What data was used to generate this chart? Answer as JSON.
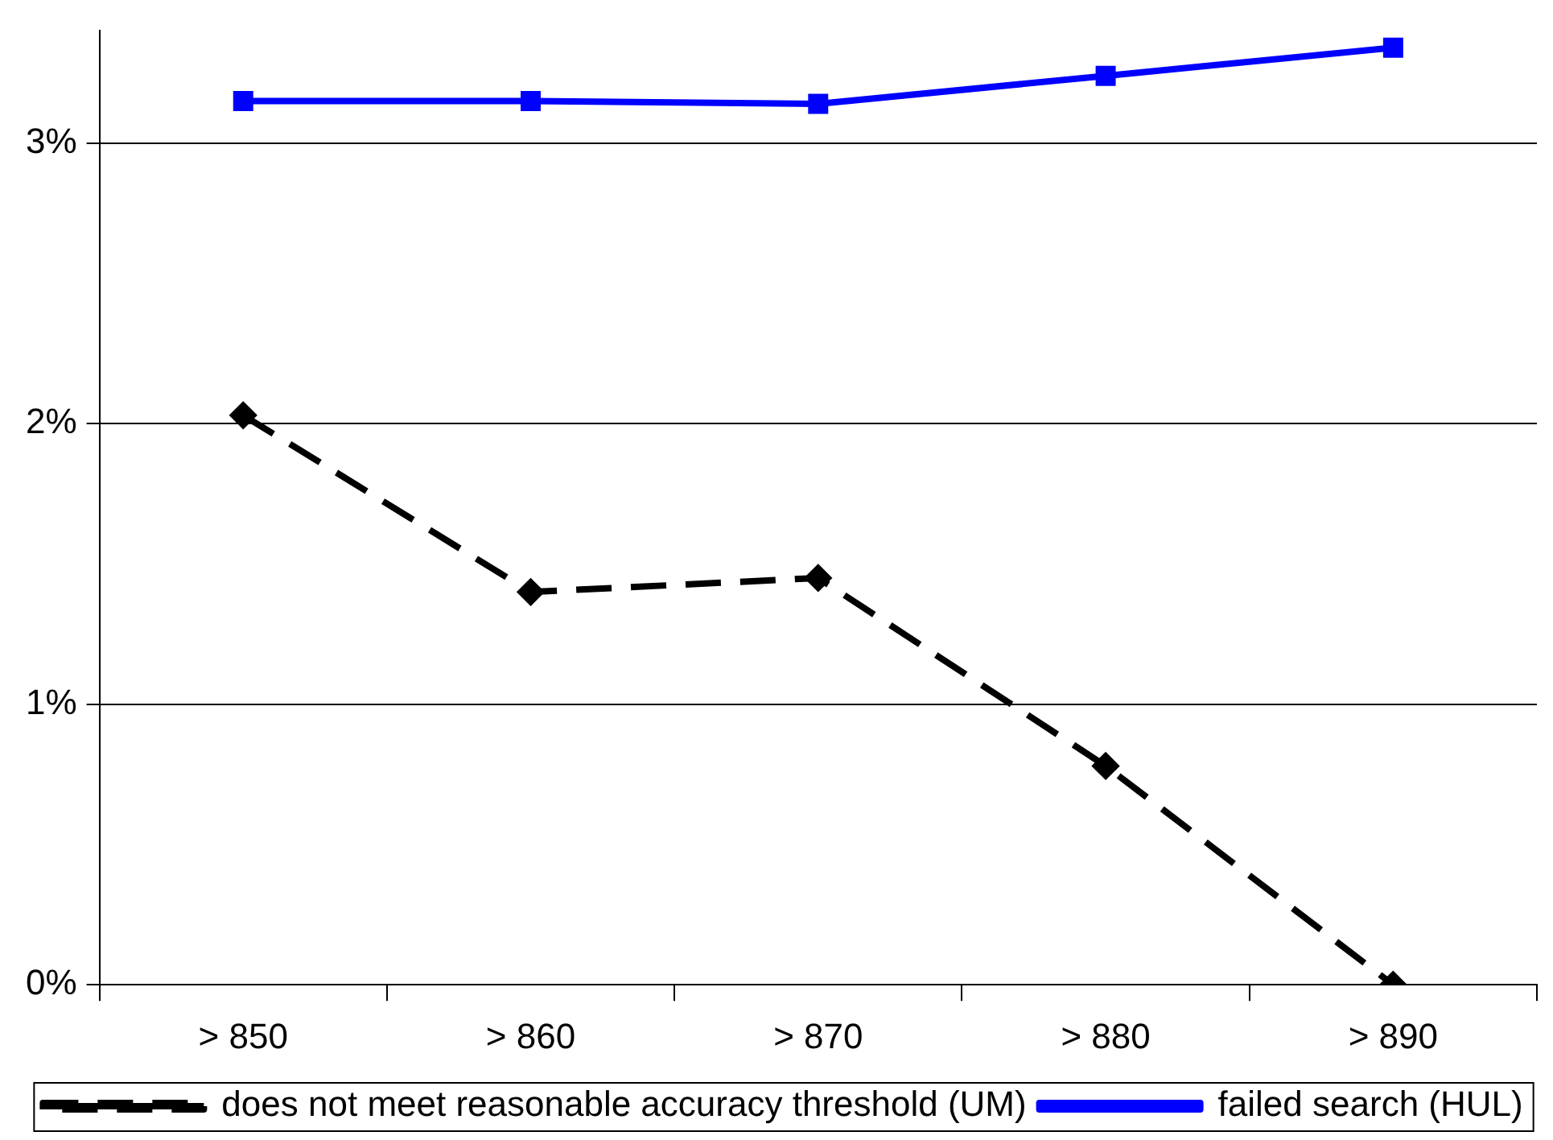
{
  "chart_data": {
    "type": "line",
    "categories": [
      "> 850",
      "> 860",
      "> 870",
      "> 880",
      "> 890"
    ],
    "series": [
      {
        "name": "does not meet reasonable accuracy threshold (UM)",
        "color": "#000000",
        "values": [
          2.03,
          1.4,
          1.45,
          0.78,
          0.0
        ],
        "marker": "diamond",
        "line_style": "dashed"
      },
      {
        "name": "failed search (HUL)",
        "color": "#0000ff",
        "values": [
          3.15,
          3.15,
          3.14,
          3.24,
          3.34
        ],
        "marker": "square",
        "line_style": "solid"
      }
    ],
    "ylim": [
      0,
      3.4
    ],
    "yticks": [
      {
        "value": 0,
        "label": "0%"
      },
      {
        "value": 1,
        "label": "1%"
      },
      {
        "value": 2,
        "label": "2%"
      },
      {
        "value": 3,
        "label": "3%"
      }
    ],
    "grid": "y",
    "legend": "bottom"
  }
}
